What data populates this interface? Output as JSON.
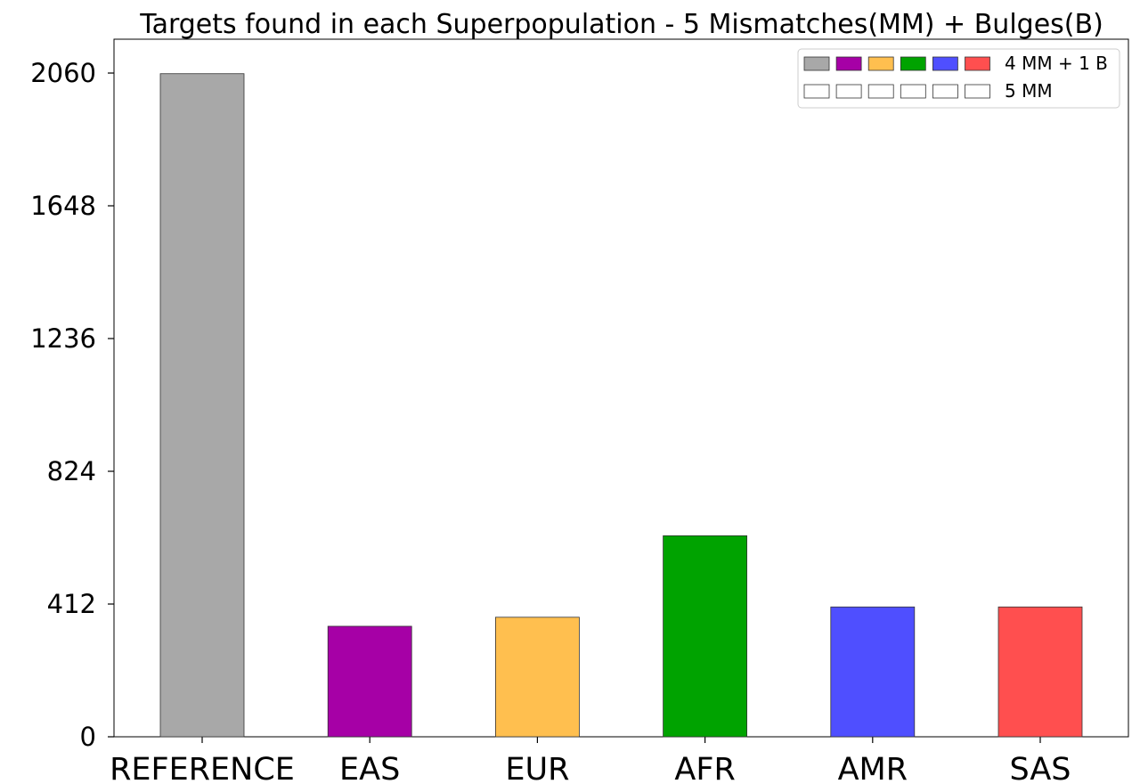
{
  "chart_data": {
    "type": "bar",
    "title": "Targets found in each Superpopulation - 5 Mismatches(MM) + Bulges(B)",
    "xlabel": "",
    "ylabel": "",
    "categories": [
      "REFERENCE",
      "EAS",
      "EUR",
      "AFR",
      "AMR",
      "SAS"
    ],
    "series": [
      {
        "name": "4 MM + 1 B",
        "values": [
          2058,
          343,
          371,
          624,
          403,
          403
        ],
        "colors": [
          "#a8a8a8",
          "#a600a6",
          "#ffbf4f",
          "#00a300",
          "#4f4fff",
          "#ff4f4f"
        ]
      },
      {
        "name": "5 MM",
        "values": [
          0,
          0,
          0,
          0,
          0,
          0
        ],
        "colors": [
          "#ffffff",
          "#ffffff",
          "#ffffff",
          "#ffffff",
          "#ffffff",
          "#ffffff"
        ]
      }
    ],
    "yticks": [
      0,
      412,
      824,
      1236,
      1648,
      2060
    ],
    "ylim": [
      0,
      2060
    ],
    "grid": false,
    "legend_position": "top-right"
  }
}
